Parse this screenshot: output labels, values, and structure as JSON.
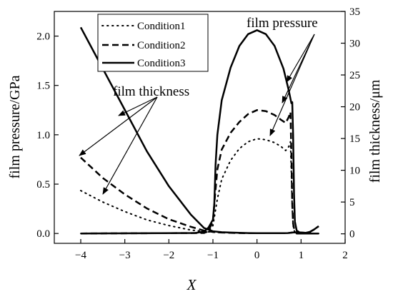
{
  "chart_data": {
    "type": "line",
    "title": "",
    "xlabel": "X",
    "ylabel_left": "film pressure/GPa",
    "ylabel_right": "film thickness/μm",
    "xlim": [
      -4.6,
      2.0
    ],
    "ylim_left": [
      -0.1,
      2.25
    ],
    "ylim_right": [
      -1.5,
      35
    ],
    "x_ticks": [
      -4,
      -3,
      -2,
      -1,
      0,
      1,
      2
    ],
    "x_tick_labels": [
      "−4",
      "−3",
      "−2",
      "−1",
      "0",
      "1",
      "2"
    ],
    "y_left_ticks": [
      0.0,
      0.5,
      1.0,
      1.5,
      2.0
    ],
    "y_left_tick_labels": [
      "0.0",
      "0.5",
      "1.0",
      "1.5",
      "2.0"
    ],
    "y_right_ticks": [
      0,
      5,
      10,
      15,
      20,
      25,
      30,
      35
    ],
    "y_right_tick_labels": [
      "0",
      "5",
      "10",
      "15",
      "20",
      "25",
      "30",
      "35"
    ],
    "grid": false,
    "legend_position": "top-left",
    "series": [
      {
        "name": "Condition1",
        "style": "dotted",
        "pressure": {
          "axis": "left",
          "x": [
            -4,
            -1.2,
            -1.1,
            -1.0,
            -0.9,
            -0.8,
            -0.6,
            -0.4,
            -0.2,
            0.0,
            0.2,
            0.4,
            0.55,
            0.65,
            0.72,
            0.76,
            0.78,
            0.8,
            0.82,
            0.85,
            0.9,
            1.0,
            1.2,
            1.4
          ],
          "y": [
            0.0,
            0.005,
            0.02,
            0.08,
            0.35,
            0.55,
            0.74,
            0.86,
            0.93,
            0.96,
            0.95,
            0.92,
            0.88,
            0.84,
            0.88,
            0.93,
            0.6,
            0.25,
            0.08,
            0.02,
            0.0,
            0.0,
            0.0,
            0.0
          ]
        },
        "thickness": {
          "axis": "right",
          "x": [
            -4.0,
            -3.5,
            -3.0,
            -2.5,
            -2.0,
            -1.5,
            -1.2,
            -1.0,
            -0.8,
            -0.6,
            -0.4,
            -0.2,
            0.0,
            0.2,
            0.4,
            0.6,
            0.7,
            0.75,
            0.8,
            0.9,
            1.0,
            1.1,
            1.2,
            1.3,
            1.4
          ],
          "y": [
            6.8,
            5.0,
            3.5,
            2.2,
            1.3,
            0.6,
            0.35,
            0.25,
            0.2,
            0.15,
            0.12,
            0.1,
            0.1,
            0.1,
            0.1,
            0.1,
            0.12,
            0.15,
            0.2,
            0.25,
            0.2,
            0.15,
            0.3,
            0.7,
            1.2
          ]
        }
      },
      {
        "name": "Condition2",
        "style": "dashed",
        "pressure": {
          "axis": "left",
          "x": [
            -4,
            -1.2,
            -1.1,
            -1.0,
            -0.95,
            -0.9,
            -0.8,
            -0.6,
            -0.4,
            -0.2,
            0.0,
            0.2,
            0.4,
            0.55,
            0.65,
            0.72,
            0.76,
            0.78,
            0.8,
            0.82,
            0.85,
            0.9,
            1.0,
            1.2,
            1.4
          ],
          "y": [
            0.0,
            0.005,
            0.03,
            0.12,
            0.4,
            0.65,
            0.85,
            1.02,
            1.13,
            1.21,
            1.25,
            1.24,
            1.2,
            1.15,
            1.12,
            1.18,
            1.23,
            0.8,
            0.3,
            0.1,
            0.03,
            0.0,
            0.0,
            0.0,
            0.0
          ]
        },
        "thickness": {
          "axis": "right",
          "x": [
            -4.0,
            -3.5,
            -3.0,
            -2.5,
            -2.0,
            -1.5,
            -1.2,
            -1.0,
            -0.8,
            -0.6,
            -0.4,
            -0.2,
            0.0,
            0.2,
            0.4,
            0.6,
            0.7,
            0.75,
            0.8,
            0.9,
            1.0,
            1.1,
            1.2,
            1.3,
            1.4
          ],
          "y": [
            12.0,
            8.8,
            6.2,
            4.0,
            2.3,
            1.1,
            0.5,
            0.3,
            0.2,
            0.15,
            0.12,
            0.1,
            0.1,
            0.1,
            0.1,
            0.1,
            0.12,
            0.15,
            0.2,
            0.25,
            0.2,
            0.15,
            0.3,
            0.7,
            1.2
          ]
        }
      },
      {
        "name": "Condition3",
        "style": "solid",
        "pressure": {
          "axis": "left",
          "x": [
            -4,
            -1.4,
            -1.2,
            -1.1,
            -1.0,
            -0.97,
            -0.94,
            -0.9,
            -0.8,
            -0.6,
            -0.4,
            -0.2,
            0.0,
            0.2,
            0.4,
            0.6,
            0.72,
            0.78,
            0.8,
            0.82,
            0.84,
            0.86,
            0.9,
            1.0,
            1.2,
            1.4
          ],
          "y": [
            0.0,
            0.005,
            0.02,
            0.06,
            0.14,
            0.3,
            0.7,
            1.0,
            1.35,
            1.68,
            1.9,
            2.02,
            2.06,
            2.02,
            1.9,
            1.67,
            1.45,
            1.32,
            1.33,
            1.0,
            0.4,
            0.12,
            0.03,
            0.0,
            0.0,
            0.0
          ]
        },
        "thickness": {
          "axis": "right",
          "x": [
            -4.0,
            -3.5,
            -3.0,
            -2.5,
            -2.0,
            -1.5,
            -1.2,
            -1.0,
            -0.8,
            -0.6,
            -0.4,
            -0.2,
            0.0,
            0.2,
            0.4,
            0.6,
            0.7,
            0.75,
            0.8,
            0.9,
            1.0,
            1.1,
            1.2,
            1.3,
            1.4
          ],
          "y": [
            32.5,
            26.0,
            19.5,
            13.0,
            7.5,
            3.0,
            0.9,
            0.4,
            0.25,
            0.2,
            0.15,
            0.12,
            0.1,
            0.1,
            0.1,
            0.1,
            0.12,
            0.15,
            0.2,
            0.25,
            0.2,
            0.15,
            0.3,
            0.7,
            1.2
          ]
        }
      }
    ],
    "annotations": [
      {
        "text": "film thickness"
      },
      {
        "text": "film pressure"
      }
    ]
  }
}
